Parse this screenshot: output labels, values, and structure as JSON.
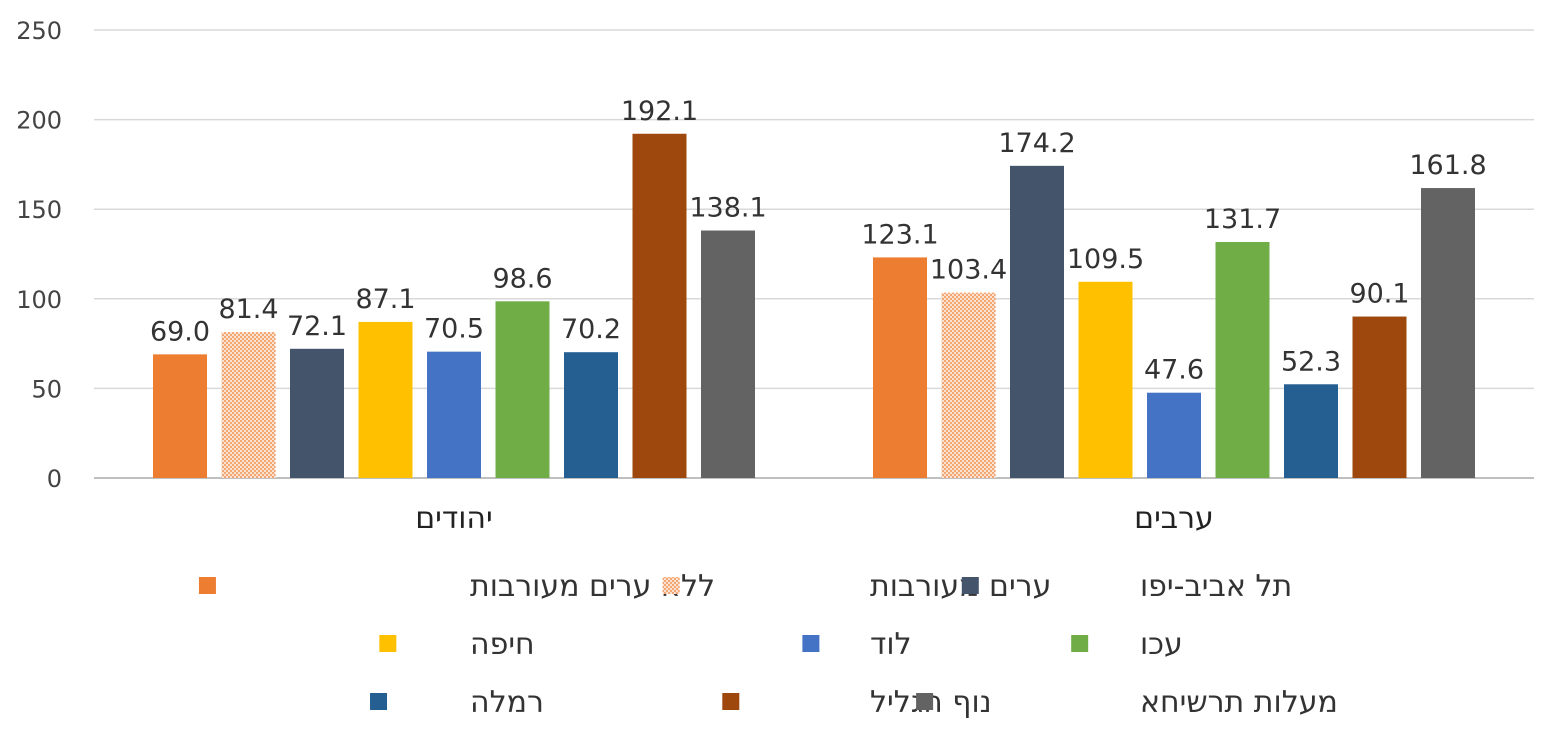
{
  "chart_data": {
    "type": "bar",
    "categories": [
      "יהודים",
      "ערבים"
    ],
    "ylim": [
      0,
      250
    ],
    "yticks": [
      0,
      50,
      100,
      150,
      200,
      250
    ],
    "grid": true,
    "legend_position": "bottom",
    "series": [
      {
        "name": "ללא ערים מעורבות",
        "values": [
          69.0,
          123.1
        ],
        "color": "#ED7D31",
        "pattern": "none"
      },
      {
        "name": "ערים מעורבות",
        "values": [
          81.4,
          103.4
        ],
        "color": "#ED7D31",
        "pattern": "dots"
      },
      {
        "name": "תל אביב-יפו",
        "values": [
          72.1,
          174.2
        ],
        "color": "#44546A",
        "pattern": "none"
      },
      {
        "name": "חיפה",
        "values": [
          87.1,
          109.5
        ],
        "color": "#FFC000",
        "pattern": "none"
      },
      {
        "name": "לוד",
        "values": [
          70.5,
          47.6
        ],
        "color": "#4472C4",
        "pattern": "none"
      },
      {
        "name": "עכו",
        "values": [
          98.6,
          131.7
        ],
        "color": "#70AD47",
        "pattern": "none"
      },
      {
        "name": "רמלה",
        "values": [
          70.2,
          52.3
        ],
        "color": "#255E91",
        "pattern": "none"
      },
      {
        "name": "נוף הגליל",
        "values": [
          192.1,
          90.1
        ],
        "color": "#9E480E",
        "pattern": "none"
      },
      {
        "name": "מעלות תרשיחא",
        "values": [
          138.1,
          161.8
        ],
        "color": "#636363",
        "pattern": "none"
      }
    ]
  }
}
